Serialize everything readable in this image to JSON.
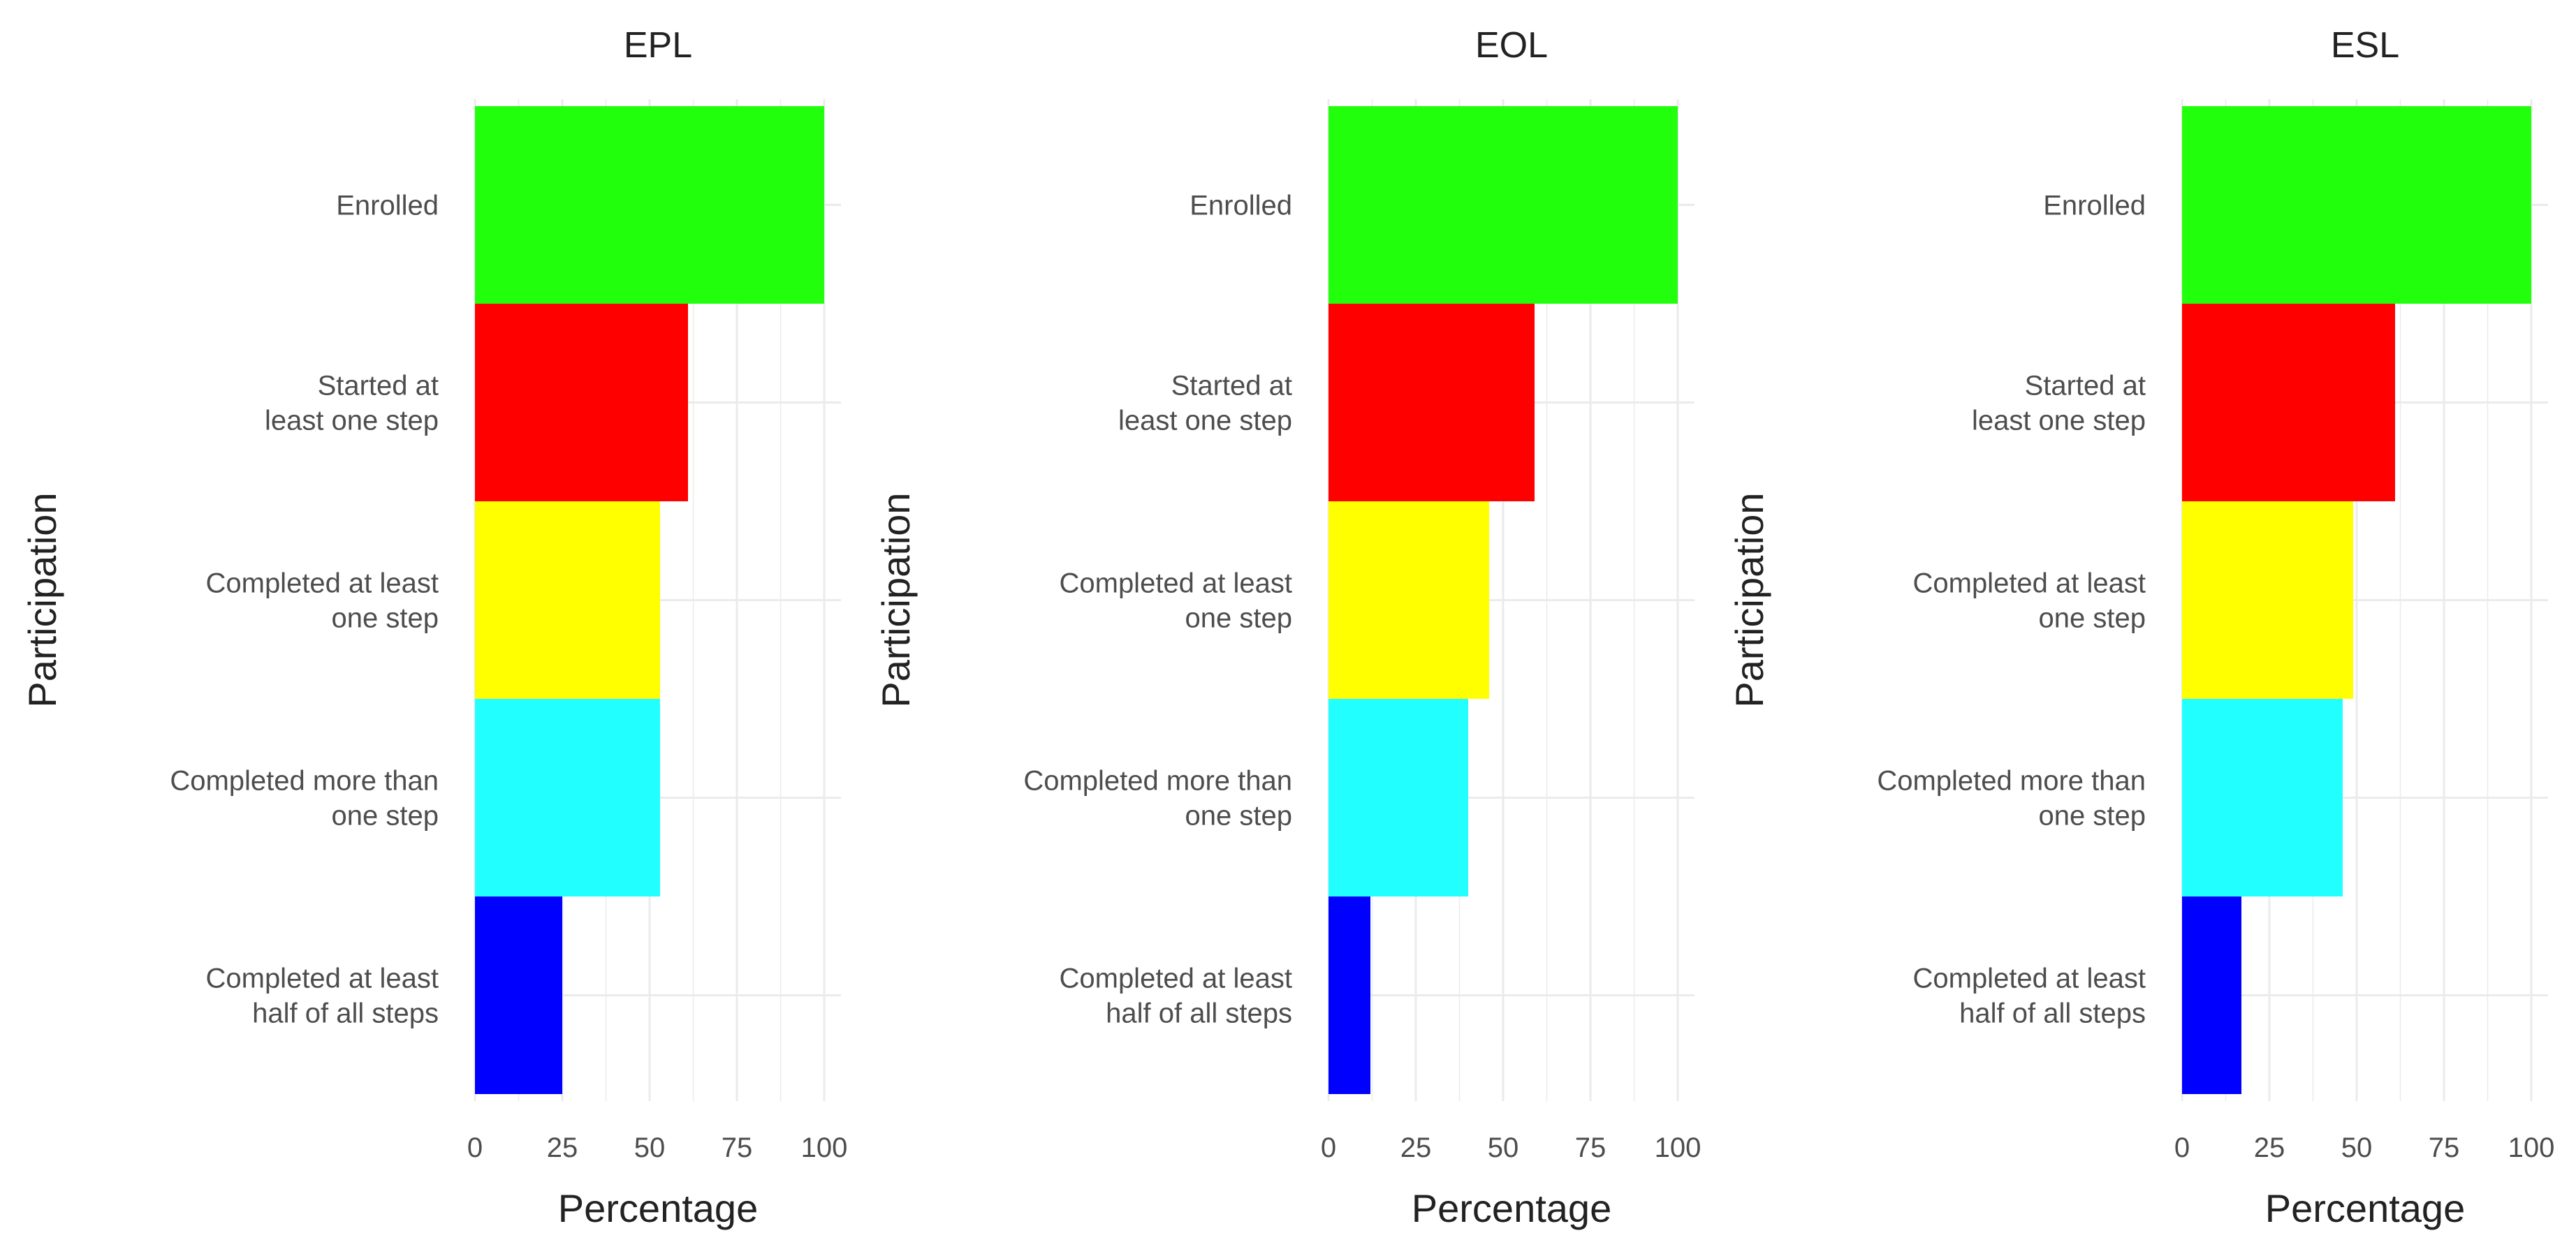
{
  "chart_data": [
    {
      "type": "bar",
      "orientation": "horizontal",
      "title": "EPL",
      "xlabel": "Percentage",
      "ylabel": "Participation",
      "xlim": [
        0,
        100
      ],
      "xticks": [
        "0",
        "25",
        "50",
        "75",
        "100"
      ],
      "categories": [
        "Enrolled",
        "Started at\nleast one step",
        "Completed at least\none step",
        "Completed more than\none step",
        "Completed at least\nhalf of all steps"
      ],
      "values": [
        100,
        61,
        53,
        53,
        25
      ],
      "colors": [
        "#22ff0d",
        "#ff0000",
        "#ffff00",
        "#22ffff",
        "#0000ff"
      ]
    },
    {
      "type": "bar",
      "orientation": "horizontal",
      "title": "EOL",
      "xlabel": "Percentage",
      "ylabel": "Participation",
      "xlim": [
        0,
        100
      ],
      "xticks": [
        "0",
        "25",
        "50",
        "75",
        "100"
      ],
      "categories": [
        "Enrolled",
        "Started at\nleast one step",
        "Completed at least\none step",
        "Completed more than\none step",
        "Completed at least\nhalf of all steps"
      ],
      "values": [
        100,
        59,
        46,
        40,
        12
      ],
      "colors": [
        "#22ff0d",
        "#ff0000",
        "#ffff00",
        "#22ffff",
        "#0000ff"
      ]
    },
    {
      "type": "bar",
      "orientation": "horizontal",
      "title": "ESL",
      "xlabel": "Percentage",
      "ylabel": "Participation",
      "xlim": [
        0,
        100
      ],
      "xticks": [
        "0",
        "25",
        "50",
        "75",
        "100"
      ],
      "categories": [
        "Enrolled",
        "Started at\nleast one step",
        "Completed at least\none step",
        "Completed more than\none step",
        "Completed at least\nhalf of all steps"
      ],
      "values": [
        100,
        61,
        49,
        46,
        17
      ],
      "colors": [
        "#22ff0d",
        "#ff0000",
        "#ffff00",
        "#22ffff",
        "#0000ff"
      ]
    }
  ]
}
